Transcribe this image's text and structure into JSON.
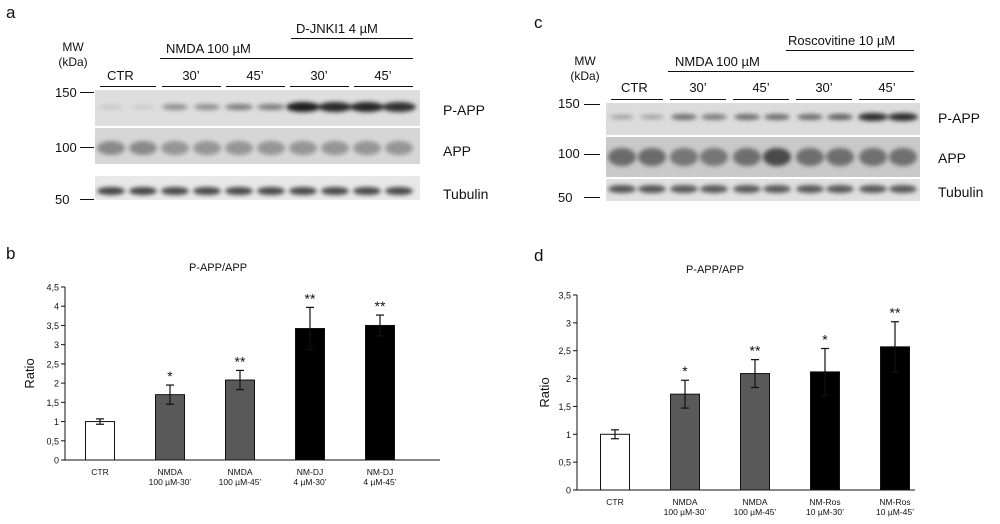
{
  "panels": {
    "a": {
      "letter": "a",
      "mw_label": "MW\n(kDa)",
      "group_labels": {
        "ctr": "CTR",
        "treatment": "NMDA 100 µM",
        "inhibitor": "D-JNKI1 4   µM"
      },
      "time_labels": [
        "30’",
        "45’",
        "30’",
        "45’"
      ],
      "mw_markers": [
        "150",
        "100",
        "50"
      ],
      "band_labels": [
        "P-APP",
        "APP",
        "Tubulin"
      ]
    },
    "c": {
      "letter": "c",
      "mw_label": "MW\n(kDa)",
      "group_labels": {
        "ctr": "CTR",
        "treatment": "NMDA 100 µM",
        "inhibitor": "Roscovitine 10 µM"
      },
      "time_labels": [
        "30’",
        "45’",
        "30’",
        "45’"
      ],
      "mw_markers": [
        "150",
        "100",
        "50"
      ],
      "band_labels": [
        "P-APP",
        "APP",
        "Tubulin"
      ]
    },
    "b": {
      "letter": "b"
    },
    "d": {
      "letter": "d"
    }
  },
  "chart_data": [
    {
      "type": "bar",
      "title": "P-APP/APP",
      "ylabel": "Ratio",
      "ylim": [
        0,
        4.5
      ],
      "yticks": [
        "0",
        "0,5",
        "1",
        "1,5",
        "2",
        "2,5",
        "3",
        "3,5",
        "4",
        "4,5"
      ],
      "categories": [
        [
          "CTR"
        ],
        [
          "NMDA",
          "100 µM-30’"
        ],
        [
          "NMDA",
          "100 µM-45’"
        ],
        [
          "NM-DJ",
          "4 µM-30’"
        ],
        [
          "NM-DJ",
          "4 µM-45’"
        ]
      ],
      "values": [
        1.0,
        1.7,
        2.08,
        3.42,
        3.5
      ],
      "errors": [
        0.07,
        0.25,
        0.25,
        0.55,
        0.27
      ],
      "significance": [
        "",
        "*",
        "**",
        "**",
        "**"
      ],
      "colors": [
        "#ffffff",
        "#595959",
        "#595959",
        "#000000",
        "#000000"
      ]
    },
    {
      "type": "bar",
      "title": "P-APP/APP",
      "ylabel": "Ratio",
      "ylim": [
        0,
        3.5
      ],
      "yticks": [
        "0",
        "0,5",
        "1",
        "1,5",
        "2",
        "2,5",
        "3",
        "3,5"
      ],
      "categories": [
        [
          "CTR"
        ],
        [
          "NMDA",
          "100 µM-30’"
        ],
        [
          "NMDA",
          "100 µM-45’"
        ],
        [
          "NM-Ros",
          "10 µM-30’"
        ],
        [
          "NM-Ros",
          "10 µM-45’"
        ]
      ],
      "values": [
        1.0,
        1.72,
        2.09,
        2.12,
        2.57
      ],
      "errors": [
        0.08,
        0.25,
        0.25,
        0.42,
        0.45
      ],
      "significance": [
        "",
        "*",
        "**",
        "*",
        "**"
      ],
      "colors": [
        "#ffffff",
        "#595959",
        "#595959",
        "#000000",
        "#000000"
      ]
    }
  ]
}
